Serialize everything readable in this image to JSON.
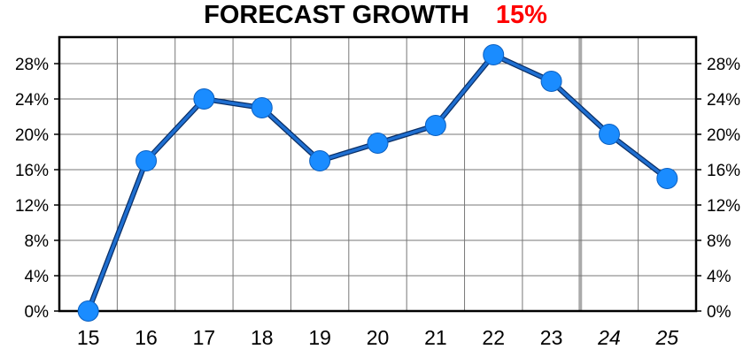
{
  "title": {
    "text": "FORECAST GROWTH",
    "value": "15%",
    "value_color": "#ff0000"
  },
  "chart_data": {
    "type": "line",
    "title": "FORECAST GROWTH",
    "categories": [
      "15",
      "16",
      "17",
      "18",
      "19",
      "20",
      "21",
      "22",
      "23",
      "24",
      "25"
    ],
    "forecast_categories": [
      "24",
      "25"
    ],
    "series": [
      {
        "values": [
          0,
          17,
          24,
          23,
          17,
          19,
          21,
          29,
          26,
          20,
          15
        ]
      }
    ],
    "ylim": [
      0,
      31
    ],
    "yticks": [
      0,
      4,
      8,
      12,
      16,
      20,
      24,
      28
    ],
    "ytick_labels": [
      "0%",
      "4%",
      "8%",
      "12%",
      "16%",
      "20%",
      "24%",
      "28%"
    ],
    "y_axis_sides": [
      "left",
      "right"
    ],
    "grid": true,
    "line_color": "#1f6fd1",
    "marker_color": "#1a8cff",
    "forecast_divider_color": "#aaaaaa"
  }
}
